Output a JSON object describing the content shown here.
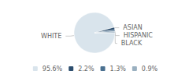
{
  "chart_data": {
    "type": "pie",
    "categories": [
      "WHITE",
      "ASIAN",
      "HISPANIC",
      "BLACK"
    ],
    "values": [
      95.6,
      2.2,
      1.3,
      0.9
    ],
    "value_labels": [
      "95.6%",
      "2.2%",
      "1.3%",
      "0.9%"
    ],
    "colors": [
      "#d9e4ec",
      "#2d4e6e",
      "#4a7090",
      "#9ab0c0"
    ],
    "legend": "bottom"
  }
}
